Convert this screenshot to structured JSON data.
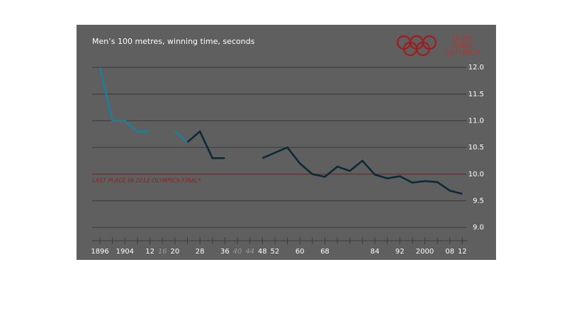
{
  "chart_data": {
    "type": "line",
    "title": "Men’s 100 metres, winning time, seconds",
    "logo": [
      "DAILY",
      "CHART",
      "OLYMPICS"
    ],
    "x": [
      1896,
      1900,
      1904,
      1908,
      1912,
      1916,
      1920,
      1924,
      1928,
      1932,
      1936,
      1940,
      1944,
      1948,
      1952,
      1956,
      1960,
      1964,
      1968,
      1972,
      1976,
      1980,
      1984,
      1988,
      1992,
      1996,
      2000,
      2004,
      2008,
      2012
    ],
    "series": [
      {
        "color": "#1b7f99",
        "values": [
          12.0,
          11.0,
          11.0,
          10.8,
          10.8,
          null,
          10.8,
          10.6,
          null,
          null,
          null,
          null,
          null,
          null,
          null,
          null,
          null,
          null,
          null,
          null,
          null,
          null,
          null,
          null,
          null,
          null,
          null,
          null,
          null,
          null
        ]
      },
      {
        "color": "#0c2a36",
        "values": [
          null,
          null,
          null,
          null,
          null,
          null,
          null,
          10.6,
          10.8,
          10.3,
          10.3,
          null,
          null,
          10.3,
          10.4,
          10.5,
          10.2,
          10.0,
          9.95,
          10.14,
          10.06,
          10.25,
          9.99,
          9.92,
          9.96,
          9.84,
          9.87,
          9.85,
          9.69,
          9.63
        ]
      }
    ],
    "reference_line": {
      "value": 10.0,
      "label": "LAST PLACE IN 2012 OLYMPICS FINAL*",
      "color": "#8b2222"
    },
    "xlim": [
      1888.5,
      2022.8
    ],
    "xticks": [
      {
        "value": 1896,
        "label": "1896"
      },
      {
        "value": 1904,
        "label": "1904"
      },
      {
        "value": 1912,
        "label": "12"
      },
      {
        "value": 1916,
        "label": "16"
      },
      {
        "value": 1920,
        "label": "20"
      },
      {
        "value": 1928,
        "label": "28"
      },
      {
        "value": 1936,
        "label": "36"
      },
      {
        "value": 1940,
        "label": "40"
      },
      {
        "value": 1944,
        "label": "44"
      },
      {
        "value": 1948,
        "label": "48"
      },
      {
        "value": 1952,
        "label": "52"
      },
      {
        "value": 1960,
        "label": "60"
      },
      {
        "value": 1968,
        "label": "68"
      },
      {
        "value": 1984,
        "label": "84"
      },
      {
        "value": 1992,
        "label": "92"
      },
      {
        "value": 2000,
        "label": "2000"
      },
      {
        "value": 2008,
        "label": "08"
      },
      {
        "value": 2012,
        "label": "12"
      }
    ],
    "cancelled": [
      1916,
      1940,
      1944
    ],
    "ylim": [
      8.75,
      12.8
    ],
    "yticks": [
      {
        "value": 12.0,
        "label": "12.0"
      },
      {
        "value": 11.5,
        "label": "11.5"
      },
      {
        "value": 11.0,
        "label": "11.0"
      },
      {
        "value": 10.5,
        "label": "10.5"
      },
      {
        "value": 10.0,
        "label": "10.0"
      },
      {
        "value": 9.5,
        "label": "9.5"
      },
      {
        "value": 9.0,
        "label": "9.0"
      }
    ],
    "grid": true
  }
}
